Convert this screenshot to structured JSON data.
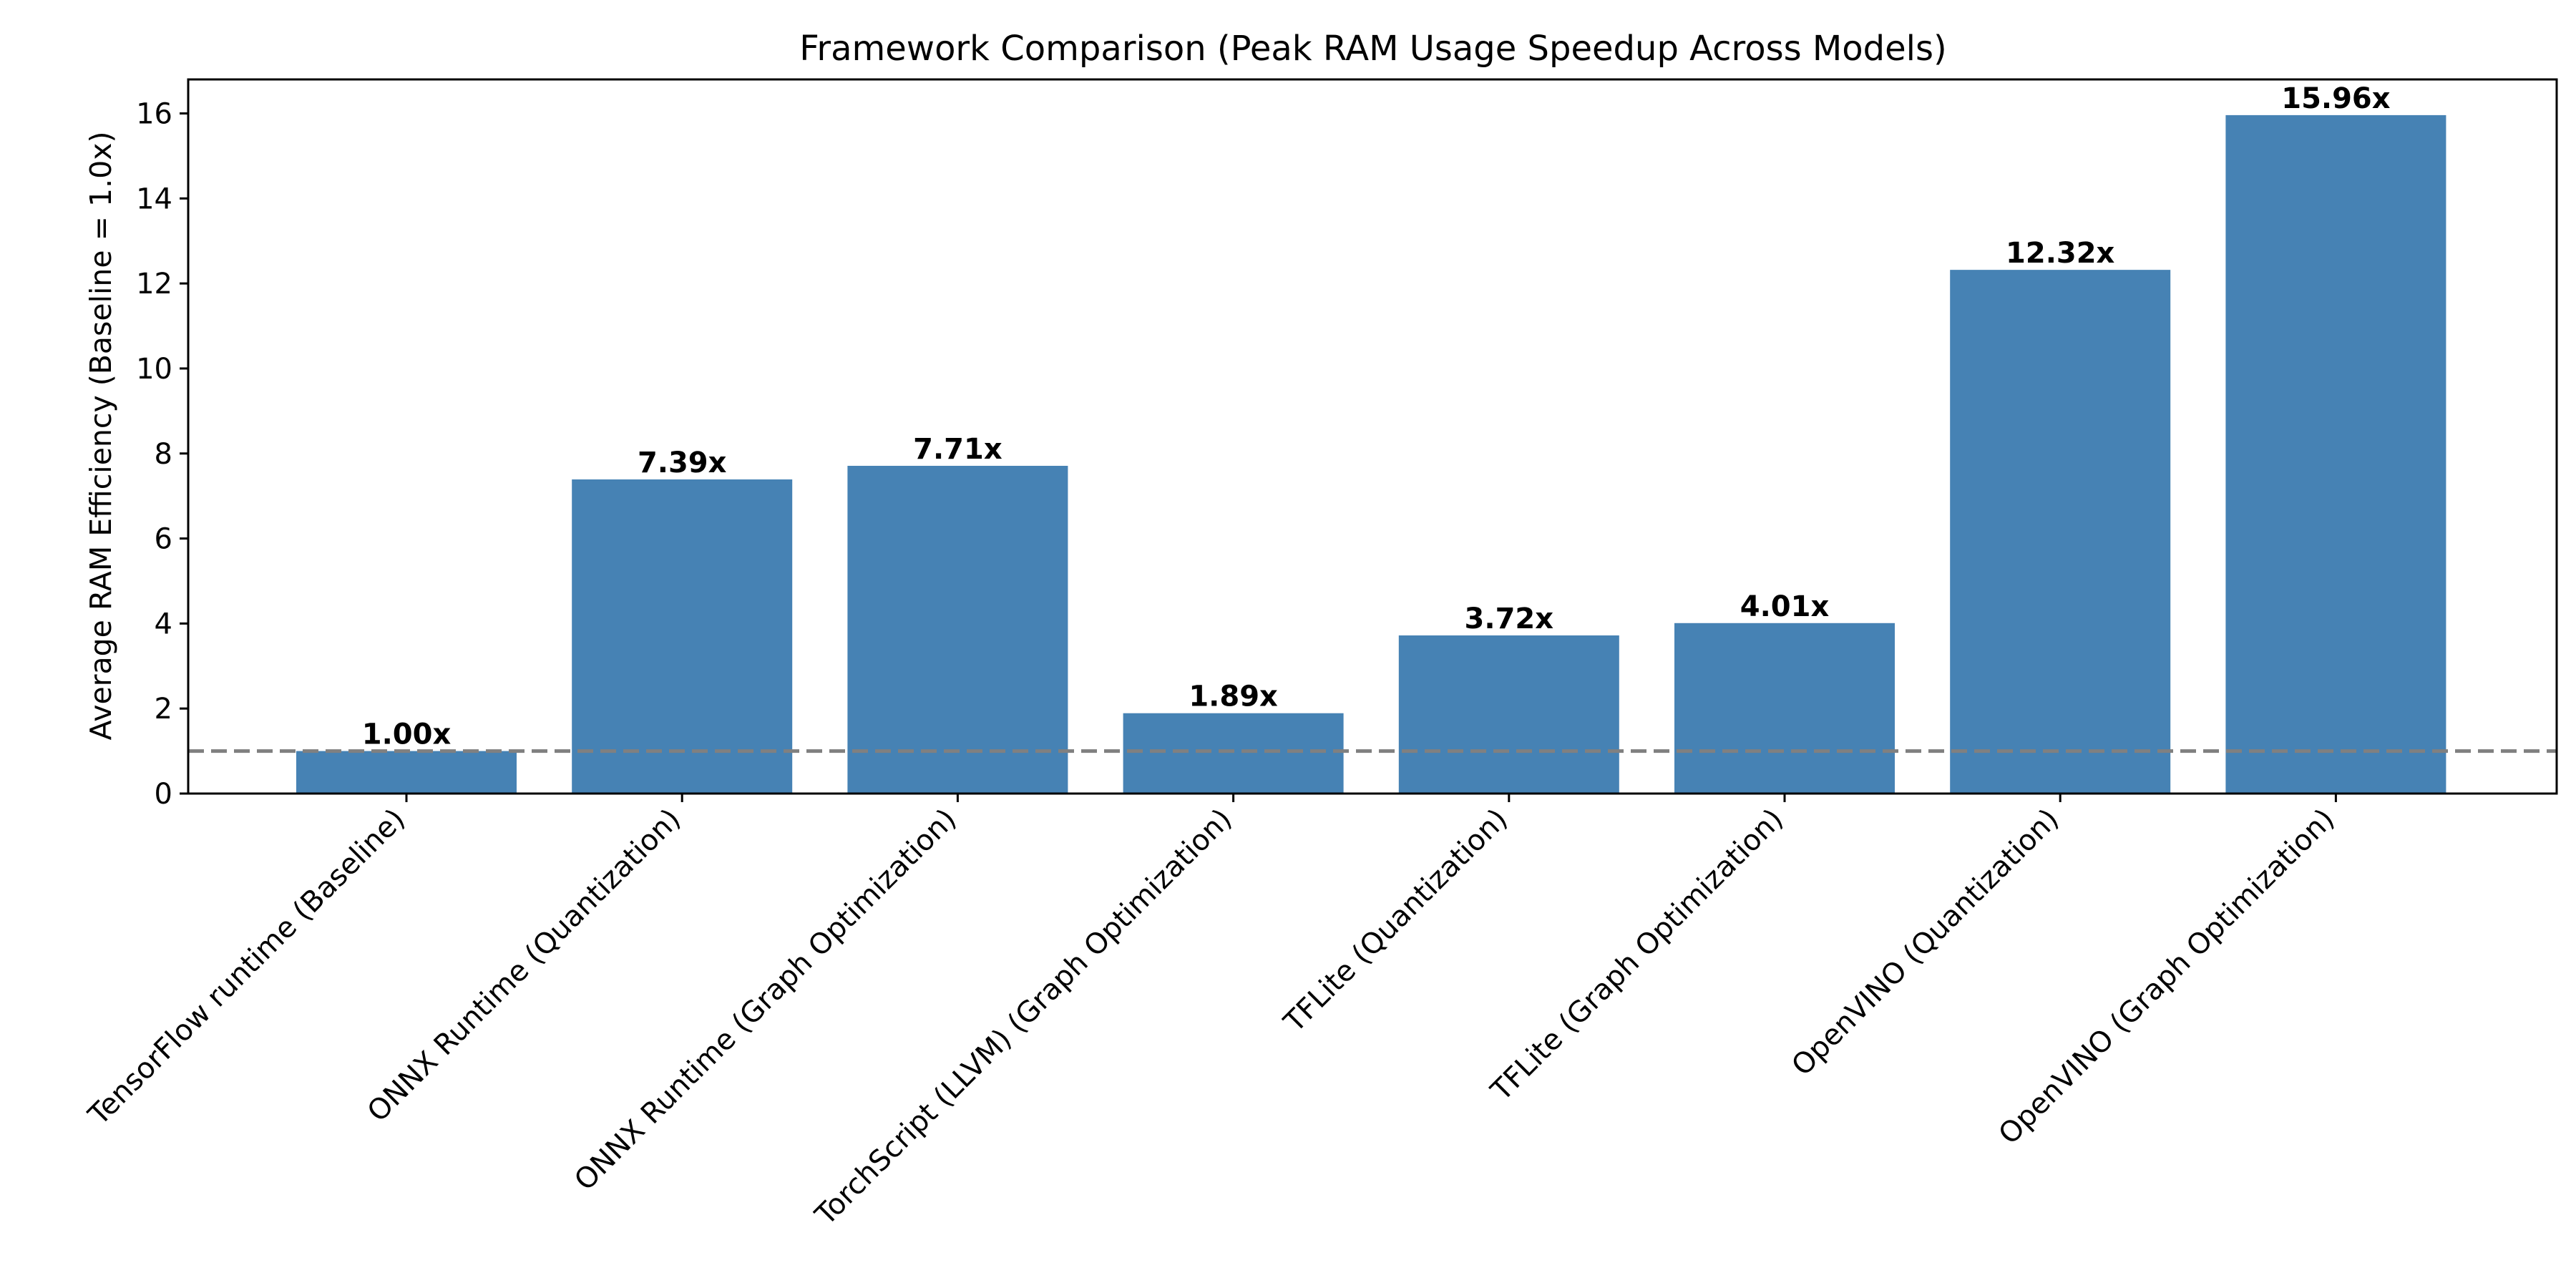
{
  "chart_data": {
    "type": "bar",
    "title": "Framework Comparison (Peak RAM Usage Speedup Across Models)",
    "xlabel": "",
    "ylabel": "Average RAM Efficiency (Baseline = 1.0x)",
    "categories": [
      "TensorFlow runtime (Baseline)",
      "ONNX Runtime (Quantization)",
      "ONNX Runtime (Graph Optimization)",
      "TorchScript (LLVM) (Graph Optimization)",
      "TFLite (Quantization)",
      "TFLite (Graph Optimization)",
      "OpenVINO (Quantization)",
      "OpenVINO (Graph Optimization)"
    ],
    "values": [
      1.0,
      7.39,
      7.71,
      1.89,
      3.72,
      4.01,
      12.32,
      15.96
    ],
    "value_labels": [
      "1.00x",
      "7.39x",
      "7.71x",
      "1.89x",
      "3.72x",
      "4.01x",
      "12.32x",
      "15.96x"
    ],
    "ylim": [
      0,
      16.8
    ],
    "yticks": [
      0,
      2,
      4,
      6,
      8,
      10,
      12,
      14,
      16
    ],
    "baseline": 1.0,
    "grid": false,
    "colors": {
      "bar": "#4682b4",
      "baseline_line": "#808080",
      "axes": "#000000"
    }
  }
}
